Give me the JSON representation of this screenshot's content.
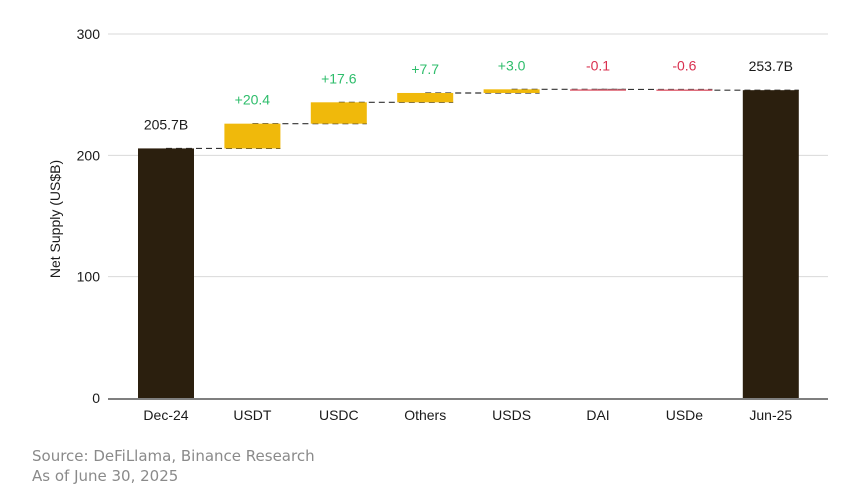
{
  "chart_data": {
    "type": "bar",
    "subtype": "waterfall",
    "ylabel": "Net Supply (US$B)",
    "ylim": [
      0,
      300
    ],
    "yticks": [
      0,
      100,
      200,
      300
    ],
    "grid": true,
    "categories": [
      "Dec-24",
      "USDT",
      "USDC",
      "Others",
      "USDS",
      "DAI",
      "USDe",
      "Jun-25"
    ],
    "bars": [
      {
        "category": "Dec-24",
        "kind": "total",
        "value": 205.7,
        "label": "205.7B"
      },
      {
        "category": "USDT",
        "kind": "delta",
        "value": 20.4,
        "label": "+20.4"
      },
      {
        "category": "USDC",
        "kind": "delta",
        "value": 17.6,
        "label": "+17.6"
      },
      {
        "category": "Others",
        "kind": "delta",
        "value": 7.7,
        "label": "+7.7"
      },
      {
        "category": "USDS",
        "kind": "delta",
        "value": 3.0,
        "label": "+3.0"
      },
      {
        "category": "DAI",
        "kind": "delta",
        "value": -0.1,
        "label": "-0.1"
      },
      {
        "category": "USDe",
        "kind": "delta",
        "value": -0.6,
        "label": "-0.6"
      },
      {
        "category": "Jun-25",
        "kind": "total",
        "value": 253.7,
        "label": "253.7B"
      }
    ],
    "colors": {
      "total": "#2b1f0e",
      "increase": "#f0b90b",
      "decrease": "#e06b7a",
      "increase_label": "#2ebd6b",
      "decrease_label": "#d9304f",
      "total_label": "#1a1a1a",
      "grid": "#d9d9d9",
      "connector": "#333333"
    }
  },
  "footer": {
    "source": "Source: DeFiLlama, Binance Research",
    "date": "As of June 30, 2025"
  }
}
